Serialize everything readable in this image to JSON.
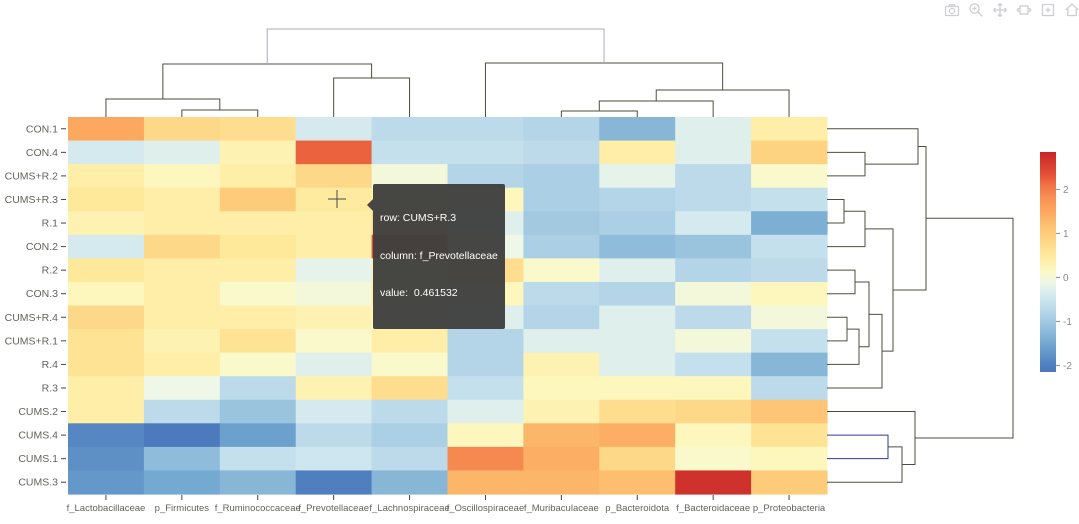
{
  "modebar": {
    "icons": [
      "camera",
      "zoom",
      "pan",
      "autoscale",
      "reset-axes",
      "home",
      "modebar-extra"
    ]
  },
  "tooltip": {
    "row_line": "row: CUMS+R.3",
    "column_line": "column: f_Prevotellaceae",
    "value_line": "value:  0.461532"
  },
  "chart_data": {
    "type": "heatmap",
    "title": "",
    "rows": [
      "CON.1",
      "CON.4",
      "CUMS+R.2",
      "CUMS+R.3",
      "R.1",
      "CON.2",
      "R.2",
      "CON.3",
      "CUMS+R.4",
      "CUMS+R.1",
      "R.4",
      "R.3",
      "CUMS.2",
      "CUMS.4",
      "CUMS.1",
      "CUMS.3"
    ],
    "columns": [
      "f_Lactobacillaceae",
      "p_Firmicutes",
      "f_Ruminococcaceae",
      "f_Prevotellaceae",
      "f_Lachnospiraceae",
      "f_Oscillospiraceae",
      "f_Muribaculaceae",
      "p_Bacteroidota",
      "f_Bacteroidaceae",
      "p_Proteobacteria"
    ],
    "values": [
      [
        1.5,
        0.8,
        0.7,
        -0.4,
        -0.7,
        -0.7,
        -0.8,
        -1.3,
        -0.3,
        0.4
      ],
      [
        -0.4,
        -0.3,
        0.3,
        2.2,
        -0.6,
        -0.6,
        -0.7,
        0.4,
        -0.3,
        0.9
      ],
      [
        0.4,
        0.2,
        0.4,
        0.8,
        0.0,
        -0.8,
        -0.9,
        -0.2,
        -0.7,
        0.1
      ],
      [
        0.5,
        0.4,
        1.0,
        0.461532,
        0.3,
        0.2,
        -0.9,
        -0.8,
        -0.7,
        -0.6
      ],
      [
        0.3,
        0.4,
        0.4,
        0.4,
        0.8,
        -0.3,
        -1.0,
        -0.9,
        -0.4,
        -1.4
      ],
      [
        -0.4,
        0.8,
        0.5,
        0.4,
        2.35,
        -0.1,
        -0.9,
        -1.2,
        -1.1,
        -0.6
      ],
      [
        0.5,
        0.4,
        0.4,
        -0.2,
        0.3,
        0.7,
        0.1,
        -0.3,
        -0.8,
        -0.7
      ],
      [
        0.2,
        0.4,
        0.1,
        0.0,
        0.4,
        0.2,
        -0.7,
        -0.8,
        0.0,
        0.2
      ],
      [
        0.8,
        0.4,
        0.4,
        0.3,
        0.2,
        -0.3,
        -0.8,
        -0.3,
        -0.7,
        0.0
      ],
      [
        0.6,
        0.3,
        0.6,
        0.1,
        0.4,
        -0.8,
        -0.3,
        -0.3,
        0.0,
        -0.6
      ],
      [
        0.6,
        0.4,
        0.1,
        -0.3,
        0.1,
        -0.8,
        0.3,
        -0.3,
        -0.6,
        -1.3
      ],
      [
        0.4,
        -0.1,
        -0.7,
        0.3,
        0.7,
        -0.6,
        0.2,
        0.2,
        0.2,
        -0.7
      ],
      [
        0.4,
        -0.7,
        -1.1,
        -0.4,
        -0.7,
        -0.3,
        0.3,
        0.7,
        0.8,
        1.1
      ],
      [
        -1.9,
        -2.1,
        -1.6,
        -0.7,
        -0.9,
        0.2,
        1.3,
        1.4,
        0.2,
        0.6
      ],
      [
        -1.8,
        -1.2,
        -0.6,
        -0.5,
        -0.7,
        1.9,
        1.4,
        0.8,
        0.1,
        0.2
      ],
      [
        -1.7,
        -1.5,
        -1.3,
        -2.0,
        -1.3,
        1.3,
        1.3,
        1.2,
        2.7,
        1.0
      ]
    ],
    "highlighted_cell": {
      "row": "CUMS+R.3",
      "column": "f_Prevotellaceae",
      "value": 0.461532
    },
    "colorscale": {
      "name": "RdYlBu reversed",
      "max_color": "#c62627",
      "mid_color": "#fdf9c4",
      "min_color": "#3f61ad"
    },
    "colorbar": {
      "tick_labels": [
        "2",
        "1",
        "0",
        "-1",
        "-2"
      ],
      "tick_values": [
        2,
        1,
        0,
        -1,
        -2
      ],
      "range": [
        -2.15,
        2.85
      ],
      "position": "right"
    },
    "legend_position": "none",
    "grid": false,
    "column_dendrogram": [
      [
        [
          "f_Lactobacillaceae",
          [
            "p_Firmicutes",
            "f_Ruminococcaceae"
          ]
        ],
        [
          "f_Prevotellaceae",
          "f_Lachnospiraceae"
        ]
      ],
      [
        "f_Oscillospiraceae",
        [
          [
            [
              "f_Muribaculaceae",
              "p_Bacteroidota"
            ],
            "f_Bacteroidaceae"
          ],
          "p_Proteobacteria"
        ]
      ]
    ],
    "row_dendrogram": [
      [
        [
          "CON.1",
          [
            "CON.4",
            "CUMS+R.2"
          ]
        ],
        [
          [
            [
              "CUMS+R.3",
              "R.1"
            ],
            "CON.2"
          ],
          [
            [
              [
                "R.2",
                "CON.3"
              ],
              [
                [
                  "CUMS+R.4",
                  "CUMS+R.1"
                ],
                "R.4"
              ]
            ],
            "R.3"
          ]
        ]
      ],
      [
        "CUMS.2",
        [
          [
            "CUMS.4",
            "CUMS.1"
          ],
          "CUMS.3"
        ]
      ]
    ],
    "dendrogram_colors": {
      "default": "#4d4d3f",
      "column_root": "#a9a9c4",
      "cums_subcluster": "#2b3990"
    }
  }
}
